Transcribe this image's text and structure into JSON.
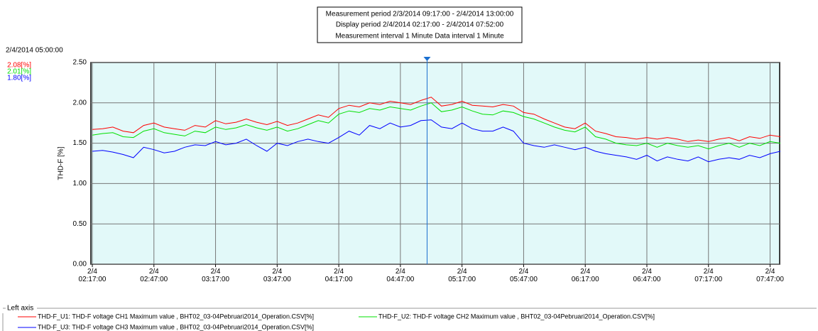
{
  "chart_data": {
    "type": "line",
    "info": [
      "Measurement period  2/3/2014 09:17:00 - 2/4/2014 13:00:00",
      "Display period  2/4/2014 02:17:00 - 2/4/2014 07:52:00",
      "Measurement interval  1 Minute  Data interval  1 Minute"
    ],
    "y_label": "THD-F [%]",
    "legend_title": "Left axis",
    "cursor": {
      "x": "2/4 05:00:00",
      "label": "2/4/2014 05:00:00",
      "values": [
        2.08,
        2.01,
        1.8
      ],
      "value_labels": [
        "2.08[%]",
        "2.01[%]",
        "1.80[%]"
      ]
    },
    "xlim": [
      "2/4 02:17:00",
      "2/4 07:52:00"
    ],
    "xticks": [
      "2/4 02:17:00",
      "2/4 02:47:00",
      "2/4 03:17:00",
      "2/4 03:47:00",
      "2/4 04:17:00",
      "2/4 04:47:00",
      "2/4 05:17:00",
      "2/4 05:47:00",
      "2/4 06:17:00",
      "2/4 06:47:00",
      "2/4 07:17:00",
      "2/4 07:47:00"
    ],
    "ylim": [
      0,
      2.5
    ],
    "yticks": [
      {
        "value": 0,
        "label": "0.00"
      },
      {
        "value": 0.5,
        "label": "0.50"
      },
      {
        "value": 1,
        "label": "1.00"
      },
      {
        "value": 1.5,
        "label": "1.50"
      },
      {
        "value": 2,
        "label": "2.00"
      },
      {
        "value": 2.5,
        "label": "2.50"
      }
    ],
    "grid": true,
    "x": [
      "2/4 02:17:00",
      "2/4 02:22:00",
      "2/4 02:27:00",
      "2/4 02:32:00",
      "2/4 02:37:00",
      "2/4 02:42:00",
      "2/4 02:47:00",
      "2/4 02:52:00",
      "2/4 02:57:00",
      "2/4 03:02:00",
      "2/4 03:07:00",
      "2/4 03:12:00",
      "2/4 03:17:00",
      "2/4 03:22:00",
      "2/4 03:27:00",
      "2/4 03:32:00",
      "2/4 03:37:00",
      "2/4 03:42:00",
      "2/4 03:47:00",
      "2/4 03:52:00",
      "2/4 03:57:00",
      "2/4 04:02:00",
      "2/4 04:07:00",
      "2/4 04:12:00",
      "2/4 04:17:00",
      "2/4 04:22:00",
      "2/4 04:27:00",
      "2/4 04:32:00",
      "2/4 04:37:00",
      "2/4 04:42:00",
      "2/4 04:47:00",
      "2/4 04:52:00",
      "2/4 04:57:00",
      "2/4 05:02:00",
      "2/4 05:07:00",
      "2/4 05:12:00",
      "2/4 05:17:00",
      "2/4 05:22:00",
      "2/4 05:27:00",
      "2/4 05:32:00",
      "2/4 05:37:00",
      "2/4 05:42:00",
      "2/4 05:47:00",
      "2/4 05:52:00",
      "2/4 05:57:00",
      "2/4 06:02:00",
      "2/4 06:07:00",
      "2/4 06:12:00",
      "2/4 06:17:00",
      "2/4 06:22:00",
      "2/4 06:27:00",
      "2/4 06:32:00",
      "2/4 06:37:00",
      "2/4 06:42:00",
      "2/4 06:47:00",
      "2/4 06:52:00",
      "2/4 06:57:00",
      "2/4 07:02:00",
      "2/4 07:07:00",
      "2/4 07:12:00",
      "2/4 07:17:00",
      "2/4 07:22:00",
      "2/4 07:27:00",
      "2/4 07:32:00",
      "2/4 07:37:00",
      "2/4 07:42:00",
      "2/4 07:47:00",
      "2/4 07:52:00"
    ],
    "series": [
      {
        "name": "THD-F_U1: THD-F voltage CH1 Maximum value  , BHT02_03-04Pebruari2014_Operation.CSV[%]",
        "color": "#ff0000",
        "values": [
          1.67,
          1.68,
          1.7,
          1.65,
          1.63,
          1.72,
          1.75,
          1.7,
          1.68,
          1.66,
          1.72,
          1.7,
          1.78,
          1.74,
          1.76,
          1.8,
          1.76,
          1.73,
          1.77,
          1.72,
          1.75,
          1.8,
          1.85,
          1.82,
          1.93,
          1.97,
          1.95,
          2.0,
          1.98,
          2.02,
          2.0,
          1.98,
          2.03,
          2.07,
          1.96,
          1.98,
          2.02,
          1.97,
          1.96,
          1.95,
          1.98,
          1.96,
          1.88,
          1.86,
          1.8,
          1.75,
          1.7,
          1.68,
          1.75,
          1.65,
          1.62,
          1.58,
          1.57,
          1.55,
          1.57,
          1.55,
          1.57,
          1.55,
          1.52,
          1.54,
          1.52,
          1.55,
          1.57,
          1.53,
          1.58,
          1.56,
          1.6,
          1.58
        ]
      },
      {
        "name": "THD-F_U2: THD-F voltage CH2 Maximum value  , BHT02_03-04Pebruari2014_Operation.CSV[%]",
        "color": "#00e000",
        "values": [
          1.6,
          1.62,
          1.63,
          1.58,
          1.57,
          1.65,
          1.68,
          1.63,
          1.61,
          1.59,
          1.65,
          1.63,
          1.7,
          1.67,
          1.69,
          1.73,
          1.69,
          1.66,
          1.7,
          1.65,
          1.68,
          1.73,
          1.78,
          1.75,
          1.86,
          1.9,
          1.88,
          1.93,
          1.91,
          1.95,
          1.93,
          1.91,
          1.96,
          2.0,
          1.89,
          1.91,
          1.95,
          1.9,
          1.86,
          1.85,
          1.9,
          1.88,
          1.83,
          1.8,
          1.75,
          1.7,
          1.66,
          1.64,
          1.7,
          1.58,
          1.55,
          1.5,
          1.48,
          1.47,
          1.5,
          1.45,
          1.5,
          1.47,
          1.45,
          1.47,
          1.43,
          1.47,
          1.5,
          1.45,
          1.5,
          1.47,
          1.52,
          1.5
        ]
      },
      {
        "name": "THD-F_U3: THD-F voltage CH3 Maximum value  , BHT02_03-04Pebruari2014_Operation.CSV[%]",
        "color": "#0000ff",
        "values": [
          1.4,
          1.41,
          1.39,
          1.36,
          1.32,
          1.45,
          1.42,
          1.38,
          1.4,
          1.45,
          1.48,
          1.47,
          1.52,
          1.48,
          1.5,
          1.55,
          1.47,
          1.4,
          1.5,
          1.47,
          1.52,
          1.55,
          1.52,
          1.5,
          1.57,
          1.65,
          1.6,
          1.72,
          1.68,
          1.75,
          1.7,
          1.72,
          1.78,
          1.79,
          1.7,
          1.68,
          1.75,
          1.68,
          1.65,
          1.65,
          1.7,
          1.65,
          1.5,
          1.47,
          1.45,
          1.48,
          1.45,
          1.42,
          1.45,
          1.4,
          1.37,
          1.35,
          1.33,
          1.3,
          1.35,
          1.28,
          1.33,
          1.3,
          1.28,
          1.33,
          1.27,
          1.3,
          1.32,
          1.3,
          1.35,
          1.32,
          1.37,
          1.4
        ]
      }
    ]
  }
}
